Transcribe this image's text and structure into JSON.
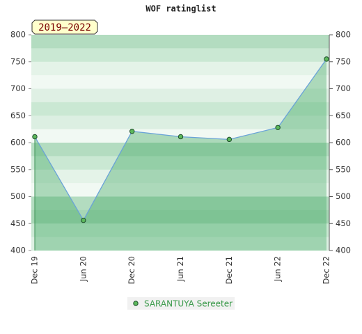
{
  "chart_data": {
    "type": "line",
    "title": "WOF ratinglist",
    "badge": "2019–2022",
    "categories": [
      "Dec 19",
      "Jun 20",
      "Dec 20",
      "Jun 21",
      "Dec 21",
      "Jun 22",
      "Dec 22"
    ],
    "series": [
      {
        "name": "SARANTUYA Sereeter",
        "color": "#6aa3d8",
        "values": [
          611,
          456,
          621,
          611,
          606,
          628,
          755
        ]
      }
    ],
    "ylim": [
      400,
      800
    ],
    "yticks": [
      400,
      450,
      500,
      550,
      600,
      650,
      700,
      750,
      800
    ],
    "y2lim": [
      400,
      800
    ],
    "y2ticks": [
      400,
      450,
      500,
      550,
      600,
      650,
      700,
      750,
      800
    ]
  }
}
